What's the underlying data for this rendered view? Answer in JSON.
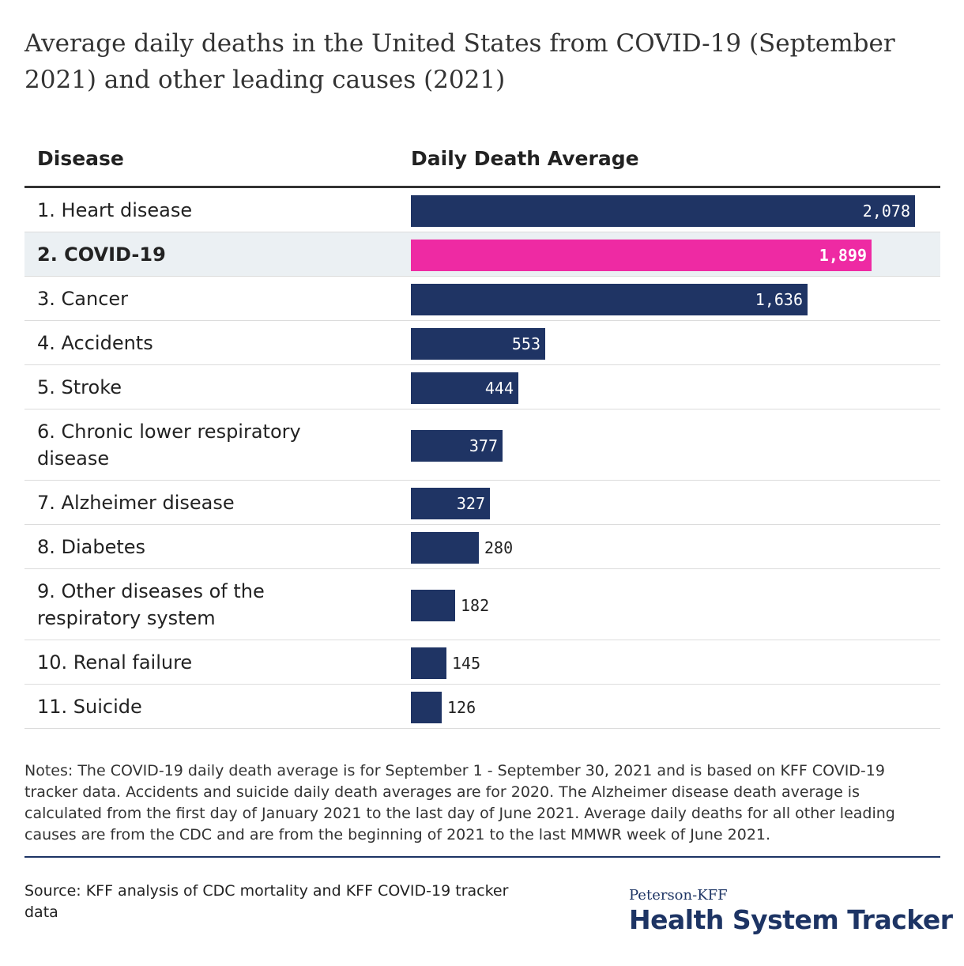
{
  "title": "Average daily deaths in the United States from COVID-19 (September 2021) and other leading causes (2021)",
  "header": {
    "disease_label": "Disease",
    "value_label": "Daily Death Average"
  },
  "colors": {
    "bar": "#1f3464",
    "highlight_bar": "#ee2aa3",
    "highlight_row": "#ebf0f3",
    "text": "#222222"
  },
  "chart_data": {
    "type": "bar",
    "orientation": "horizontal",
    "xlim": [
      0,
      2200
    ],
    "highlight_index": 1,
    "categories": [
      "1. Heart disease",
      "2. COVID-19",
      "3. Cancer",
      "4. Accidents",
      "5. Stroke",
      "6. Chronic lower respiratory disease",
      "7. Alzheimer disease",
      "8. Diabetes",
      "9. Other diseases of the respiratory system",
      "10. Renal failure",
      "11. Suicide"
    ],
    "values": [
      2078,
      1899,
      1636,
      553,
      444,
      377,
      327,
      280,
      182,
      145,
      126
    ],
    "value_labels": [
      "2,078",
      "1,899",
      "1,636",
      "553",
      "444",
      "377",
      "327",
      "280",
      "182",
      "145",
      "126"
    ]
  },
  "notes": "Notes: The COVID-19 daily death average is for September 1 - September 30, 2021 and is based on KFF COVID-19 tracker data. Accidents and suicide daily death averages are for 2020. The Alzheimer disease death average is calculated from the first day of January 2021 to the last day of June 2021. Average daily deaths for all other leading causes are from the CDC and are from the beginning of 2021 to the last MMWR week of June 2021.",
  "source": "Source: KFF analysis of CDC mortality and KFF COVID-19 tracker data",
  "logo": {
    "line1": "Peterson-KFF",
    "line2": "Health System Tracker"
  }
}
